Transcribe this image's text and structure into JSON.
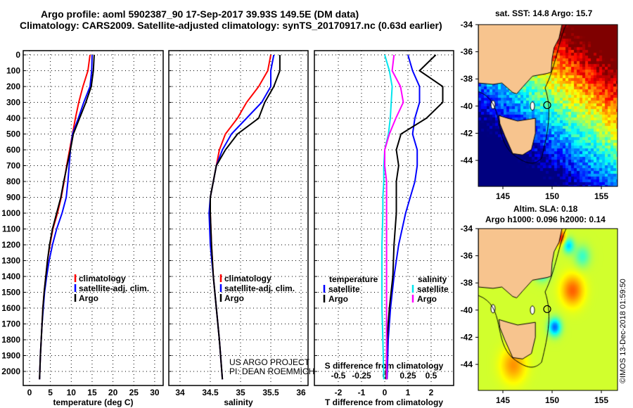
{
  "title_line1": "Argo profile: aoml 5902387_90 17-Sep-2017 39.93S 149.5E (DM data)",
  "title_line2": "Climatology: CARS2009. Satellite-adjusted climatology: synTS_20170917.nc (0.63d earlier)",
  "credit": "US ARGO PROJECT",
  "pi": "PI: DEAN ROEMMICH",
  "footer": "©IMOS 13-Dec-2018 01:59:50",
  "colors": {
    "climatology": "#ff0000",
    "satellite": "#0000ff",
    "argo": "#000000",
    "s_satellite": "#00e5ee",
    "s_argo": "#ff00ff",
    "land": "#f7c48e"
  },
  "chart_data": [
    {
      "type": "line",
      "xlabel": "temperature (deg C)",
      "xlim": [
        -1,
        31
      ],
      "xticks": [
        0,
        5,
        10,
        15,
        20,
        25,
        30
      ],
      "ylim": [
        2090,
        0
      ],
      "yticks": [
        0,
        100,
        200,
        300,
        400,
        500,
        600,
        700,
        800,
        900,
        1000,
        1100,
        1200,
        1300,
        1400,
        1500,
        1600,
        1700,
        1800,
        1900,
        2000
      ],
      "legend": [
        "climatology",
        "satellite-adj. clim.",
        "Argo"
      ],
      "depth": [
        0,
        100,
        200,
        300,
        400,
        500,
        600,
        700,
        800,
        900,
        1000,
        1100,
        1200,
        1300,
        1400,
        1500,
        1600,
        1700,
        1800,
        1900,
        2050
      ],
      "series": [
        {
          "name": "climatology",
          "values": [
            14.5,
            14,
            12.8,
            11.8,
            11,
            10.3,
            9.6,
            8.9,
            8.3,
            7.6,
            6.7,
            5.6,
            4.9,
            4.3,
            3.9,
            3.5,
            3.2,
            3.0,
            2.8,
            2.6,
            2.4
          ]
        },
        {
          "name": "satellite-adj. clim.",
          "values": [
            15,
            14.9,
            14.5,
            13,
            11.7,
            10.3,
            9.8,
            9.5,
            9.2,
            8.8,
            7.8,
            6.5,
            5.5,
            4.7,
            4.1,
            3.6,
            3.3,
            3.0,
            2.8,
            2.6,
            2.4
          ]
        },
        {
          "name": "Argo",
          "values": [
            15.5,
            15.3,
            14.8,
            13.5,
            12,
            10.5,
            9.8,
            9,
            8.2,
            7.5,
            6.5,
            5.5,
            4.8,
            4.3,
            3.9,
            3.5,
            3.2,
            3.0,
            2.8,
            2.6,
            2.4
          ]
        }
      ]
    },
    {
      "type": "line",
      "xlabel": "salinity",
      "xlim": [
        33.8,
        36.1
      ],
      "xticks": [
        34,
        34.5,
        35,
        35.5,
        36
      ],
      "legend": [
        "climatology",
        "satellite-adj. clim.",
        "Argo"
      ],
      "depth": [
        0,
        100,
        200,
        300,
        400,
        500,
        600,
        700,
        800,
        900,
        1000,
        1200,
        1400,
        1600,
        1800,
        2050
      ],
      "series": [
        {
          "name": "climatology",
          "values": [
            35.5,
            35.45,
            35.3,
            35.1,
            34.95,
            34.75,
            34.65,
            34.6,
            34.55,
            34.5,
            34.5,
            34.52,
            34.55,
            34.6,
            34.65,
            34.7
          ]
        },
        {
          "name": "satellite-adj. clim.",
          "values": [
            35.55,
            35.5,
            35.5,
            35.35,
            35.1,
            34.85,
            34.7,
            34.6,
            34.55,
            34.5,
            34.48,
            34.5,
            34.55,
            34.6,
            34.65,
            34.7
          ]
        },
        {
          "name": "Argo",
          "values": [
            35.65,
            35.65,
            35.55,
            35.4,
            35.3,
            34.95,
            34.75,
            34.6,
            34.55,
            34.5,
            34.5,
            34.52,
            34.55,
            34.6,
            34.65,
            34.7
          ]
        }
      ]
    },
    {
      "type": "line",
      "xlabel": "T difference from climatology",
      "xlabel2": "S difference from climatology",
      "xlim": [
        -3,
        3
      ],
      "xticks": [
        -2,
        -1,
        0,
        1,
        2
      ],
      "xticks2": [
        -0.5,
        -0.25,
        0,
        0.25,
        0.5
      ],
      "legend_t_title": "temperature",
      "legend_s_title": "salinity",
      "legend": [
        "satellite",
        "Argo",
        "satellite",
        "Argo"
      ],
      "depth": [
        0,
        100,
        200,
        300,
        400,
        500,
        600,
        700,
        800,
        900,
        1000,
        1200,
        1400,
        1600,
        1800,
        2050
      ],
      "series": [
        {
          "name": "T satellite",
          "values": [
            1.0,
            1.2,
            1.5,
            1.5,
            1.3,
            1.2,
            1.4,
            1.4,
            1.3,
            1.1,
            0.9,
            0.6,
            0.4,
            0.25,
            0.15,
            0.1
          ]
        },
        {
          "name": "T Argo",
          "values": [
            2.2,
            1.5,
            2.5,
            2.5,
            1.8,
            0.7,
            0.5,
            0.6,
            0.5,
            0.5,
            0.5,
            0.4,
            0.35,
            0.2,
            0.1,
            0.05
          ]
        },
        {
          "name": "S satellite",
          "values": [
            0.0,
            0.05,
            0.08,
            0.07,
            0.06,
            0.04,
            0.0,
            -0.01,
            -0.01,
            -0.02,
            -0.02,
            -0.03,
            -0.03,
            -0.03,
            -0.02,
            -0.01
          ]
        },
        {
          "name": "S Argo",
          "values": [
            0.1,
            0.08,
            0.17,
            0.2,
            0.12,
            0.05,
            0.0,
            0.0,
            0.02,
            0.02,
            0.02,
            0.02,
            0.02,
            0.02,
            0.02,
            0.02
          ]
        }
      ]
    },
    {
      "type": "heatmap",
      "title": "sat. SST: 14.8 Argo: 15.7",
      "lon_ticks": [
        145,
        150,
        155
      ],
      "lat_ticks": [
        -34,
        -36,
        -38,
        -40,
        -42,
        -44
      ],
      "marker": [
        149.5,
        -39.93
      ]
    },
    {
      "type": "heatmap",
      "title": "Altim. SLA: 0.18",
      "title2": "Argo h1000: 0.096 h2000: 0.14",
      "lon_ticks": [
        145,
        150,
        155
      ],
      "lat_ticks": [
        -34,
        -36,
        -38,
        -40,
        -42,
        -44
      ],
      "marker": [
        149.5,
        -39.93
      ]
    }
  ]
}
